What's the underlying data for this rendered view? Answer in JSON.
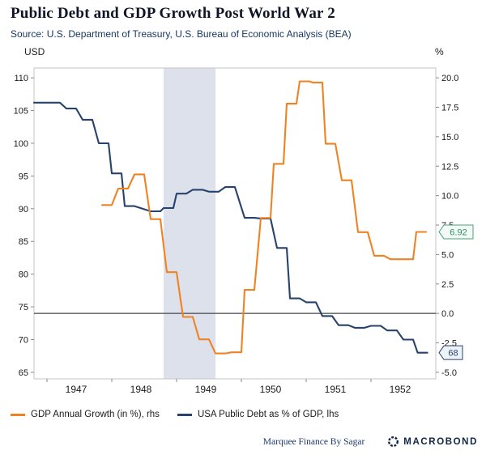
{
  "legend": {
    "items": [
      {
        "label": "GDP Annual Growth (in %), rhs",
        "color": "#ef8323"
      },
      {
        "label": "USA Public Debt as % of GDP, lhs",
        "color": "#27426c"
      }
    ]
  },
  "footer": {
    "credit": "Marquee Finance By Sagar",
    "brand": "MACROBOND"
  },
  "chart_data": {
    "type": "line",
    "title": "Public Debt and GDP Growth Post World War 2",
    "source": "Source: U.S. Department of Treasury, U.S. Bureau of Economic Analysis (BEA)",
    "x_range": [
      1946.8,
      1953.0
    ],
    "x_tick_marks": [
      1947,
      1948,
      1949,
      1950,
      1951,
      1952
    ],
    "x_tick_labels": [
      {
        "label": "1947",
        "pos": 1947.45
      },
      {
        "label": "1948",
        "pos": 1948.45
      },
      {
        "label": "1949",
        "pos": 1949.45
      },
      {
        "label": "1950",
        "pos": 1950.45
      },
      {
        "label": "1951",
        "pos": 1951.45
      },
      {
        "label": "1952",
        "pos": 1952.45
      }
    ],
    "left_axis": {
      "unit": "USD",
      "range": [
        64,
        111.5
      ],
      "ticks": [
        65,
        70,
        75,
        80,
        85,
        90,
        95,
        100,
        105,
        110
      ]
    },
    "right_axis": {
      "unit": "%",
      "range": [
        -5.5556,
        20.8333
      ],
      "ticks": [
        "-5.0",
        "-2.5",
        "0.0",
        "2.5",
        "5.0",
        "7.5",
        "10.0",
        "12.5",
        "15.0",
        "17.5",
        "20.0"
      ]
    },
    "zero_line": {
      "axis": "right",
      "value": 0
    },
    "recession_band": {
      "from": 1948.8,
      "to": 1949.6,
      "color": "#dde1eb"
    },
    "series": [
      {
        "id": "debt",
        "name": "USA Public Debt as % of GDP",
        "axis": "left",
        "color": "#27426c",
        "end_label": "68",
        "badge": {
          "stroke": "#27426c",
          "fill": "#eef3fa",
          "text": "#27426c"
        },
        "x": [
          1946.8,
          1947.05,
          1947.3,
          1947.55,
          1947.8,
          1948.0,
          1948.2,
          1948.6,
          1948.8,
          1949.0,
          1949.25,
          1949.5,
          1949.75,
          1950.05,
          1950.3,
          1950.55,
          1950.75,
          1951.0,
          1951.25,
          1951.5,
          1951.75,
          1952.0,
          1952.25,
          1952.5,
          1952.72
        ],
        "values": [
          106.2,
          106.2,
          105.3,
          103.6,
          100.0,
          95.4,
          90.4,
          89.6,
          90.1,
          92.3,
          92.9,
          92.6,
          93.3,
          88.6,
          88.5,
          84.0,
          76.3,
          75.7,
          73.6,
          72.2,
          71.8,
          72.1,
          71.4,
          70.0,
          68.0
        ]
      },
      {
        "id": "gdp",
        "name": "GDP Annual Growth (in %)",
        "axis": "right",
        "color": "#ef8323",
        "end_label": "6.92",
        "badge": {
          "stroke": "#4aa17c",
          "fill": "#f2faf6",
          "text": "#2f8f66"
        },
        "x": [
          1947.85,
          1948.1,
          1948.35,
          1948.6,
          1948.85,
          1949.1,
          1949.35,
          1949.6,
          1949.85,
          1950.05,
          1950.3,
          1950.5,
          1950.7,
          1950.9,
          1951.1,
          1951.3,
          1951.55,
          1951.8,
          1952.05,
          1952.3,
          1952.5,
          1952.7
        ],
        "values": [
          9.2,
          10.6,
          11.8,
          8.0,
          3.5,
          -0.3,
          -2.2,
          -3.4,
          -3.3,
          2.0,
          8.1,
          12.7,
          17.8,
          19.7,
          19.6,
          14.4,
          11.3,
          6.9,
          4.9,
          4.6,
          4.6,
          6.92
        ]
      }
    ]
  }
}
